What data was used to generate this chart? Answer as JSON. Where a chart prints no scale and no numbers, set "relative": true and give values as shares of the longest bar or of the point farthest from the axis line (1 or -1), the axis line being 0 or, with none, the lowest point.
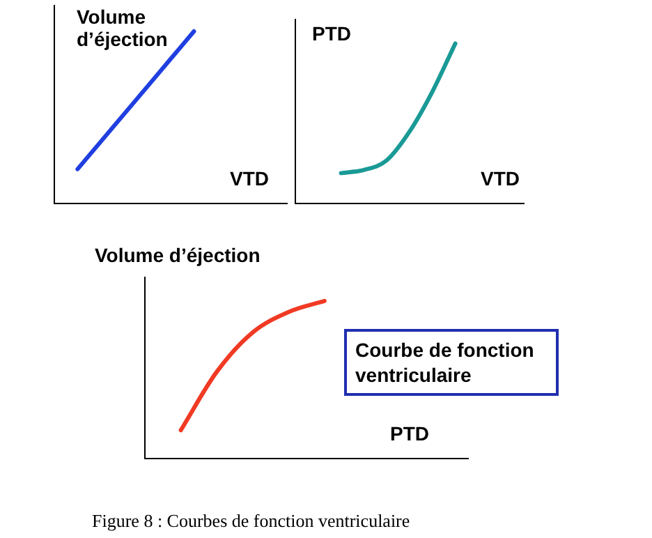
{
  "chart_data": [
    {
      "type": "line",
      "relative": true,
      "xlabel": "VTD",
      "ylabel": "Volume d’éjection",
      "categories": [
        null,
        null,
        null,
        null,
        null,
        null,
        null,
        null,
        null,
        null,
        null
      ],
      "series": [
        {
          "color": "#1f3fe0",
          "values": [
            null,
            0.2,
            0.36,
            0.52,
            0.68,
            0.84,
            1.0,
            null,
            null,
            null,
            null
          ]
        }
      ],
      "marker": "none",
      "line_style": "solid",
      "grid": false,
      "legend": false
    },
    {
      "type": "line",
      "relative": true,
      "xlabel": "VTD",
      "ylabel": "PTD",
      "categories": [
        null,
        null,
        null,
        null,
        null,
        null,
        null,
        null,
        null,
        null,
        null
      ],
      "series": [
        {
          "color": "#1a9a96",
          "values": [
            null,
            null,
            0.19,
            0.21,
            0.27,
            0.45,
            0.7,
            1.0,
            null,
            null,
            null
          ]
        }
      ],
      "marker": "none",
      "line_style": "solid",
      "grid": false,
      "legend": false
    },
    {
      "type": "line",
      "relative": true,
      "xlabel": "PTD",
      "ylabel": "Volume d’éjection",
      "categories": [
        null,
        null,
        null,
        null,
        null,
        null,
        null,
        null,
        null,
        null
      ],
      "series": [
        {
          "color": "#f03a24",
          "values": [
            null,
            0.18,
            0.55,
            0.8,
            0.93,
            1.0,
            null,
            null,
            null,
            null
          ]
        }
      ],
      "marker": "none",
      "line_style": "solid",
      "grid": false,
      "legend": false,
      "annotations": [
        "Courbe de fonction ventriculaire",
        "Figure 8 : Courbes de fonction ventriculaire"
      ]
    }
  ]
}
